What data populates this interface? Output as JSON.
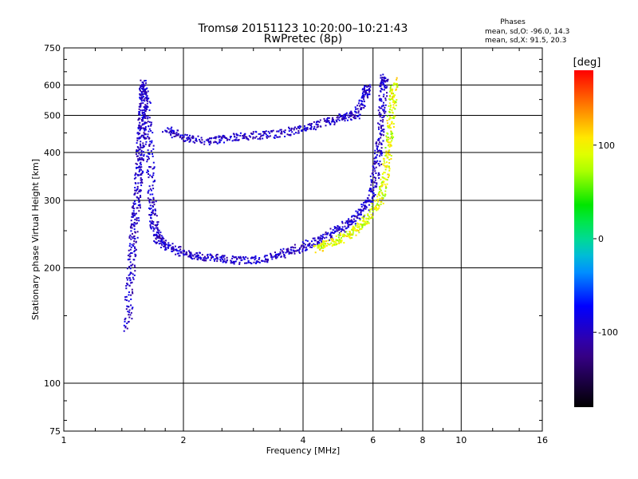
{
  "chart_data": {
    "type": "scatter",
    "title": "Tromsø 20151123 10:20:00–10:21:43",
    "subtitle": "RwPretec (8p)",
    "xlabel": "Frequency [MHz]",
    "ylabel": "Stationary phase Virtual Height [km]",
    "x_scale": "log",
    "y_scale": "log",
    "xlim": [
      1,
      16
    ],
    "ylim": [
      75,
      750
    ],
    "x_ticks": [
      1,
      2,
      4,
      6,
      8,
      10,
      16
    ],
    "y_ticks": [
      75,
      100,
      200,
      300,
      400,
      500,
      600,
      750
    ],
    "x_tick_labels": [
      "1",
      "2",
      "4",
      "6",
      "8",
      "10",
      "16"
    ],
    "y_tick_labels": [
      "75",
      "100",
      "200",
      "300",
      "400",
      "500",
      "600",
      "750"
    ],
    "grid": true,
    "stats": {
      "title": "Phases",
      "line1": "mean, sd,O: -96.0, 14.3",
      "line2": "mean, sd,X:  91.5, 20.3"
    },
    "colorbar": {
      "label": "[deg]",
      "min": -180,
      "max": 180,
      "ticks": [
        100,
        0,
        -100
      ],
      "tick_labels": [
        "100",
        "0",
        "-100"
      ]
    },
    "traces": [
      {
        "mode": "O",
        "phase_mean": -96.0,
        "phase_sd": 14.3,
        "points": [
          [
            1.44,
            140
          ],
          [
            1.46,
            180
          ],
          [
            1.48,
            220
          ],
          [
            1.5,
            260
          ],
          [
            1.52,
            300
          ],
          [
            1.54,
            350
          ],
          [
            1.55,
            400
          ],
          [
            1.56,
            450
          ],
          [
            1.57,
            500
          ],
          [
            1.58,
            560
          ],
          [
            1.58,
            610
          ],
          [
            1.62,
            500
          ],
          [
            1.64,
            400
          ],
          [
            1.66,
            300
          ],
          [
            1.68,
            260
          ],
          [
            1.72,
            240
          ],
          [
            1.8,
            230
          ],
          [
            2.0,
            220
          ],
          [
            2.2,
            215
          ],
          [
            2.5,
            212
          ],
          [
            2.8,
            210
          ],
          [
            3.2,
            212
          ],
          [
            3.6,
            220
          ],
          [
            4.0,
            228
          ],
          [
            4.4,
            238
          ],
          [
            4.8,
            250
          ],
          [
            5.2,
            262
          ],
          [
            5.6,
            280
          ],
          [
            5.9,
            310
          ],
          [
            6.1,
            360
          ],
          [
            6.2,
            420
          ],
          [
            6.3,
            500
          ],
          [
            6.35,
            600
          ],
          [
            6.4,
            630
          ]
        ]
      },
      {
        "mode": "O-multi",
        "phase_mean": -96.0,
        "phase_sd": 14.3,
        "points": [
          [
            1.8,
            460
          ],
          [
            2.0,
            440
          ],
          [
            2.3,
            430
          ],
          [
            2.6,
            440
          ],
          [
            3.0,
            445
          ],
          [
            3.5,
            450
          ],
          [
            4.0,
            465
          ],
          [
            4.5,
            480
          ],
          [
            5.0,
            495
          ],
          [
            5.4,
            505
          ],
          [
            5.7,
            560
          ],
          [
            5.8,
            600
          ]
        ]
      },
      {
        "mode": "X",
        "phase_mean": 91.5,
        "phase_sd": 20.3,
        "points": [
          [
            4.3,
            225
          ],
          [
            4.6,
            232
          ],
          [
            5.0,
            240
          ],
          [
            5.4,
            252
          ],
          [
            5.8,
            270
          ],
          [
            6.2,
            300
          ],
          [
            6.4,
            340
          ],
          [
            6.5,
            400
          ],
          [
            6.6,
            470
          ],
          [
            6.7,
            550
          ],
          [
            6.75,
            620
          ]
        ]
      }
    ]
  }
}
